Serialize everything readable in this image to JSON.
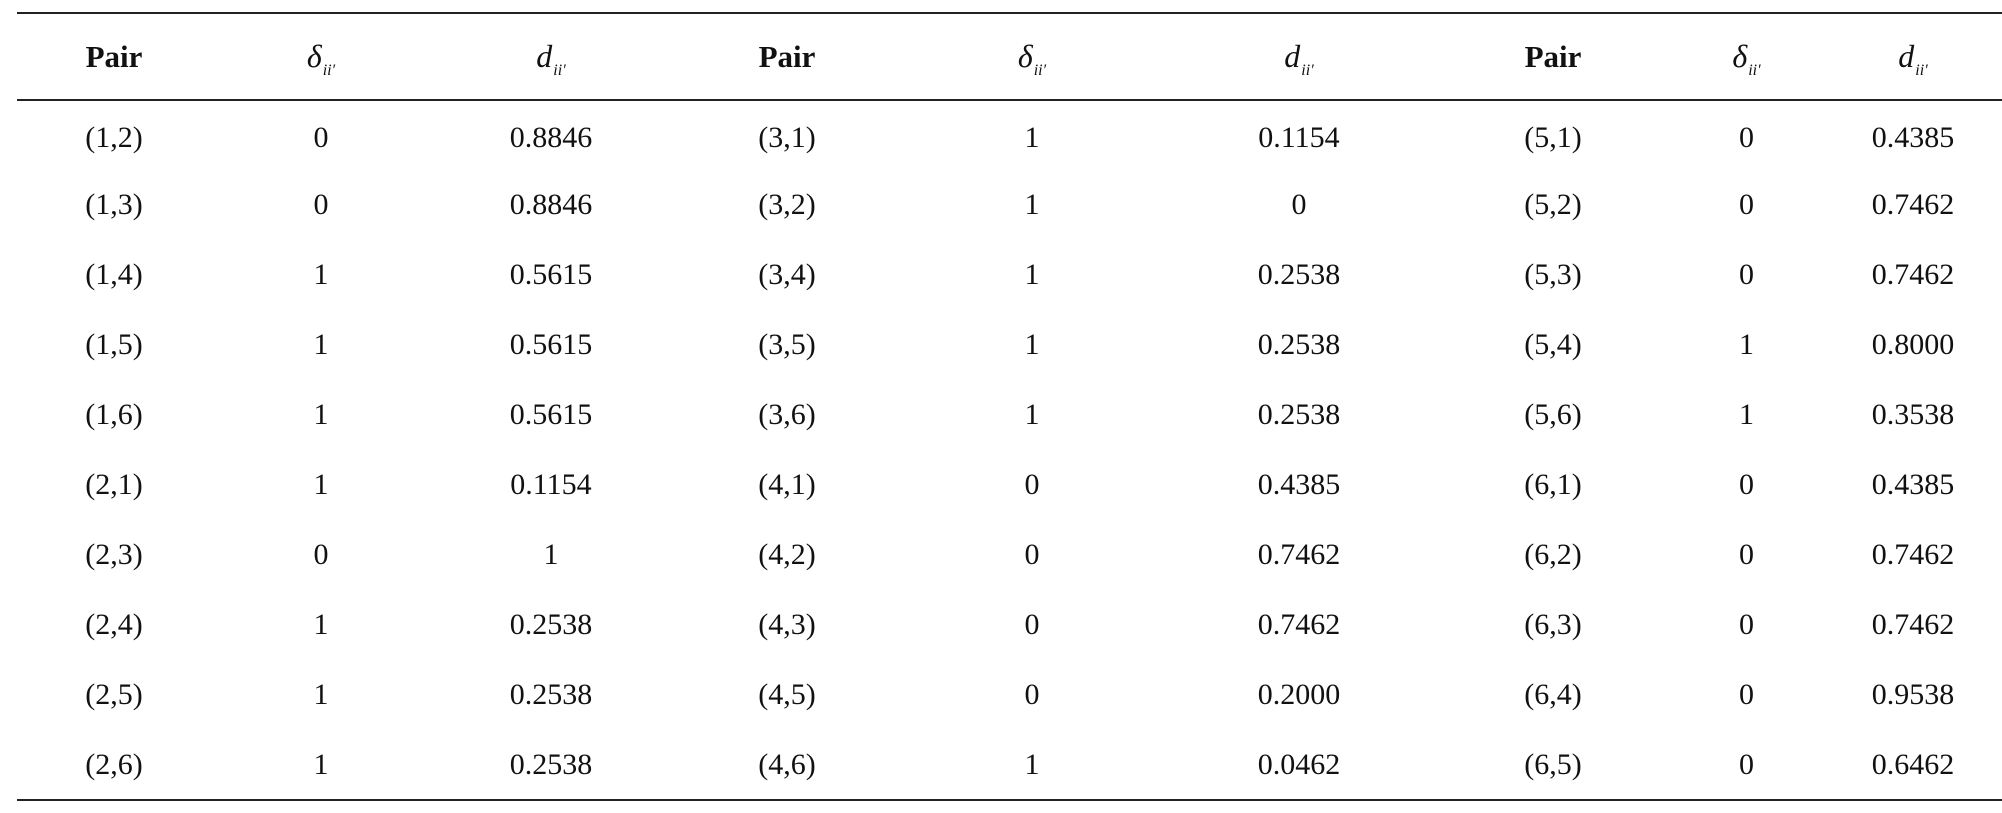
{
  "table": {
    "headers": [
      {
        "label": "Pair",
        "kind": "text"
      },
      {
        "label": "δ",
        "sub": "ii′",
        "kind": "math"
      },
      {
        "label": "d",
        "sub": "ii′",
        "kind": "math"
      },
      {
        "label": "Pair",
        "kind": "text"
      },
      {
        "label": "δ",
        "sub": "ii′",
        "kind": "math"
      },
      {
        "label": "d",
        "sub": "ii′",
        "kind": "math"
      },
      {
        "label": "Pair",
        "kind": "text"
      },
      {
        "label": "δ",
        "sub": "ii′",
        "kind": "math"
      },
      {
        "label": "d",
        "sub": "ii′",
        "kind": "math"
      }
    ],
    "rows": [
      [
        "(1,2)",
        "0",
        "0.8846",
        "(3,1)",
        "1",
        "0.1154",
        "(5,1)",
        "0",
        "0.4385"
      ],
      [
        "(1,3)",
        "0",
        "0.8846",
        "(3,2)",
        "1",
        "0",
        "(5,2)",
        "0",
        "0.7462"
      ],
      [
        "(1,4)",
        "1",
        "0.5615",
        "(3,4)",
        "1",
        "0.2538",
        "(5,3)",
        "0",
        "0.7462"
      ],
      [
        "(1,5)",
        "1",
        "0.5615",
        "(3,5)",
        "1",
        "0.2538",
        "(5,4)",
        "1",
        "0.8000"
      ],
      [
        "(1,6)",
        "1",
        "0.5615",
        "(3,6)",
        "1",
        "0.2538",
        "(5,6)",
        "1",
        "0.3538"
      ],
      [
        "(2,1)",
        "1",
        "0.1154",
        "(4,1)",
        "0",
        "0.4385",
        "(6,1)",
        "0",
        "0.4385"
      ],
      [
        "(2,3)",
        "0",
        "1",
        "(4,2)",
        "0",
        "0.7462",
        "(6,2)",
        "0",
        "0.7462"
      ],
      [
        "(2,4)",
        "1",
        "0.2538",
        "(4,3)",
        "0",
        "0.7462",
        "(6,3)",
        "0",
        "0.7462"
      ],
      [
        "(2,5)",
        "1",
        "0.2538",
        "(4,5)",
        "0",
        "0.2000",
        "(6,4)",
        "0",
        "0.9538"
      ],
      [
        "(2,6)",
        "1",
        "0.2538",
        "(4,6)",
        "1",
        "0.0462",
        "(6,5)",
        "0",
        "0.6462"
      ]
    ]
  }
}
